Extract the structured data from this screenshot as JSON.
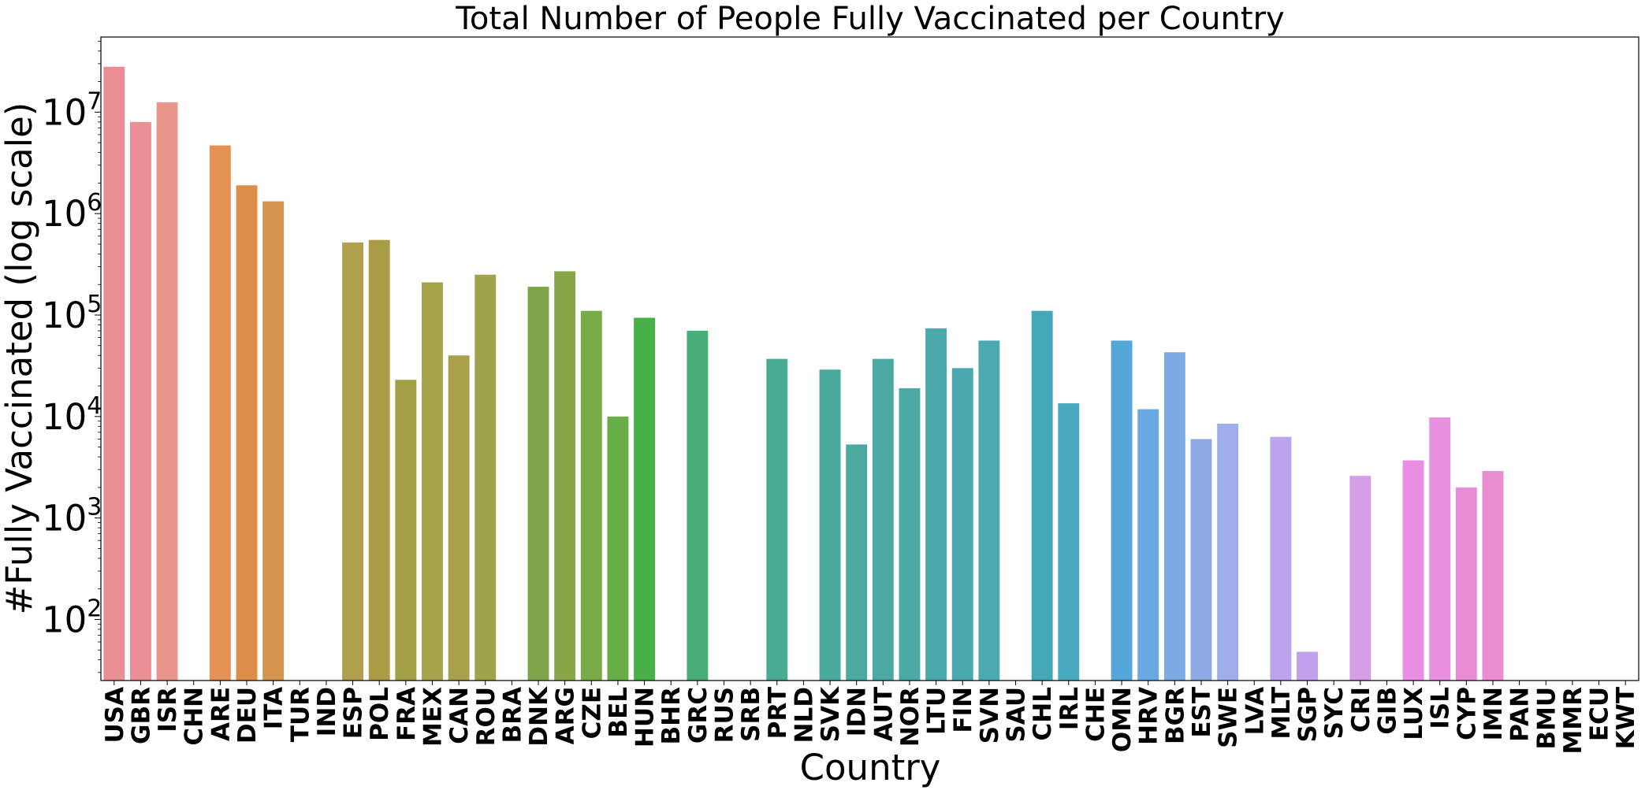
{
  "chart_data": {
    "type": "bar",
    "title": "Total Number of People Fully Vaccinated per Country",
    "xlabel": "Country",
    "ylabel": "#Fully Vaccinated (log scale)",
    "yscale": "log",
    "ylim": [
      25,
      55000000
    ],
    "yticks": [
      {
        "base": "10",
        "exp": "2",
        "value": 100
      },
      {
        "base": "10",
        "exp": "3",
        "value": 1000
      },
      {
        "base": "10",
        "exp": "4",
        "value": 10000
      },
      {
        "base": "10",
        "exp": "5",
        "value": 100000
      },
      {
        "base": "10",
        "exp": "6",
        "value": 1000000
      },
      {
        "base": "10",
        "exp": "7",
        "value": 10000000
      }
    ],
    "grid": false,
    "categories": [
      "USA",
      "GBR",
      "ISR",
      "CHN",
      "ARE",
      "DEU",
      "ITA",
      "TUR",
      "IND",
      "ESP",
      "POL",
      "FRA",
      "MEX",
      "CAN",
      "ROU",
      "BRA",
      "DNK",
      "ARG",
      "CZE",
      "BEL",
      "HUN",
      "BHR",
      "GRC",
      "RUS",
      "SRB",
      "PRT",
      "NLD",
      "SVK",
      "IDN",
      "AUT",
      "NOR",
      "LTU",
      "FIN",
      "SVN",
      "SAU",
      "CHL",
      "IRL",
      "CHE",
      "OMN",
      "HRV",
      "BGR",
      "EST",
      "SWE",
      "LVA",
      "MLT",
      "SGP",
      "SYC",
      "CRI",
      "GIB",
      "LUX",
      "ISL",
      "CYP",
      "IMN",
      "PAN",
      "BMU",
      "MMR",
      "ECU",
      "KWT"
    ],
    "values": [
      28000000,
      8000000,
      12500000,
      null,
      4700000,
      1900000,
      1320000,
      null,
      null,
      520000,
      550000,
      23000,
      210000,
      40000,
      250000,
      null,
      190000,
      270000,
      110000,
      10000,
      94000,
      null,
      70000,
      null,
      null,
      37000,
      null,
      29000,
      5300,
      37000,
      19000,
      74000,
      30000,
      56000,
      null,
      110000,
      13500,
      null,
      56000,
      11800,
      43000,
      6000,
      8500,
      null,
      6300,
      48,
      null,
      2600,
      null,
      3700,
      9800,
      2000,
      2900,
      null,
      null,
      null,
      null,
      null
    ],
    "colors": [
      "#ea8e94",
      "#ea9095",
      "#ea958c",
      "#e6976a",
      "#e59257",
      "#dc8d48",
      "#d59350",
      "#c69a42",
      "#b79b48",
      "#b0a04e",
      "#a99c44",
      "#a39f47",
      "#a6a44a",
      "#a8a04b",
      "#9fa44c",
      "#8ea851",
      "#7fa54a",
      "#86a647",
      "#79ac48",
      "#69ad46",
      "#48b049",
      "#46ae62",
      "#49ad78",
      "#46ab80",
      "#47ab8b",
      "#4aaa92",
      "#4aa997",
      "#49a99c",
      "#4ba99f",
      "#4aa9a3",
      "#4ba9a6",
      "#4ba9ab",
      "#4aa8ae",
      "#4aa9b1",
      "#46a8b6",
      "#44a8b8",
      "#48a9be",
      "#4aa9c3",
      "#55a7da",
      "#69a8e0",
      "#7eaae4",
      "#8eaae4",
      "#9daee9",
      "#b4a4ec",
      "#bba4ec",
      "#c2a1ec",
      "#cc9de9",
      "#d69ee7",
      "#de91e5",
      "#e98ee3",
      "#e88fde",
      "#e98cd5",
      "#e98ed0",
      "#e88fc8",
      "#ea8fc2",
      "#ea8fba",
      "#e990b5",
      "#ea90ad"
    ]
  }
}
